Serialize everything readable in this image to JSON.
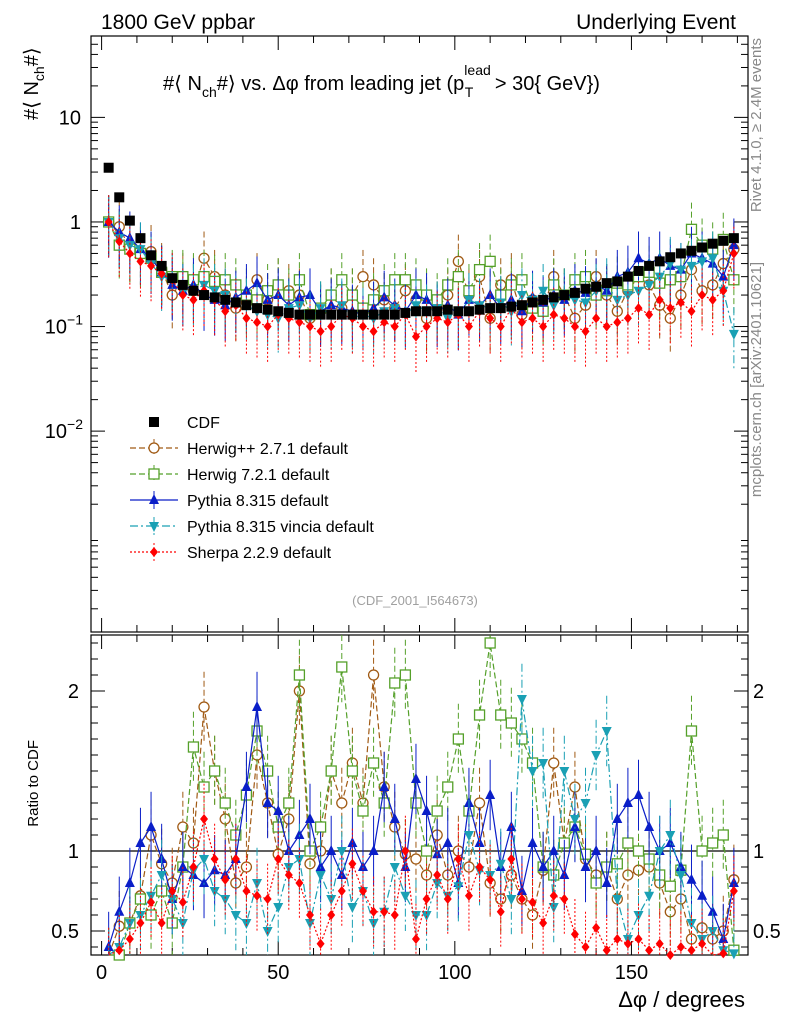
{
  "header": {
    "left": "1800 GeV ppbar",
    "right": "Underlying Event",
    "side_top": "Rivet 4.1.0, ≥ 2.4M events",
    "side_bottom": "mcplots.cern.ch [arXiv:2401.10621]",
    "analysis_id": "(CDF_2001_I564673)"
  },
  "chart_data": [
    {
      "type": "scatter",
      "panel": "main",
      "title": "#⟨ N_ch#⟩ vs. Δφ from leading jet  (p_T^lead > 30{ GeV})",
      "title_parts": {
        "a": "#⟨ N",
        "a_sub": "ch",
        "b": "#⟩ vs. Δφ from leading jet  (p",
        "b_sup": "lead",
        "b_sub": "T",
        "c": " > 30{ GeV})"
      },
      "ylabel_parts": {
        "a": "#⟨ N",
        "sub": "ch",
        "b": "#⟩"
      },
      "xlabel": "Δφ / degrees",
      "xlim": [
        -3,
        183
      ],
      "ylim": [
        0.00012,
        60
      ],
      "yscale": "log",
      "y_ticks": [
        {
          "value": 10,
          "label": "10"
        },
        {
          "value": 1,
          "label": "1"
        },
        {
          "value": 0.1,
          "label": "10",
          "sup": "−1"
        },
        {
          "value": 0.01,
          "label": "10",
          "sup": "−2"
        }
      ],
      "x": [
        2,
        5,
        8,
        11,
        14,
        17,
        20,
        23,
        26,
        29,
        32,
        35,
        38,
        41,
        44,
        47,
        50,
        53,
        56,
        59,
        62,
        65,
        68,
        71,
        74,
        77,
        80,
        83,
        86,
        89,
        92,
        95,
        98,
        101,
        104,
        107,
        110,
        113,
        116,
        119,
        122,
        125,
        128,
        131,
        134,
        137,
        140,
        143,
        146,
        149,
        152,
        155,
        158,
        161,
        164,
        167,
        170,
        173,
        176,
        179
      ],
      "series": [
        {
          "name": "CDF",
          "color": "#000000",
          "marker": "square-filled",
          "line": "none",
          "values": [
            3.3,
            1.72,
            1.03,
            0.7,
            0.48,
            0.38,
            0.29,
            0.25,
            0.22,
            0.2,
            0.19,
            0.18,
            0.17,
            0.16,
            0.15,
            0.145,
            0.14,
            0.135,
            0.13,
            0.13,
            0.13,
            0.13,
            0.13,
            0.13,
            0.13,
            0.13,
            0.13,
            0.13,
            0.135,
            0.14,
            0.14,
            0.14,
            0.145,
            0.14,
            0.14,
            0.145,
            0.15,
            0.15,
            0.155,
            0.16,
            0.17,
            0.18,
            0.19,
            0.2,
            0.21,
            0.23,
            0.24,
            0.26,
            0.27,
            0.3,
            0.34,
            0.38,
            0.42,
            0.46,
            0.5,
            0.53,
            0.57,
            0.62,
            0.66,
            0.7
          ]
        },
        {
          "name": "Herwig++ 2.7.1 default",
          "color": "#a05a14",
          "marker": "circle-open",
          "line": "dashed",
          "values": [
            1.0,
            0.9,
            0.55,
            0.5,
            0.52,
            0.35,
            0.2,
            0.28,
            0.22,
            0.45,
            0.3,
            0.2,
            0.15,
            0.17,
            0.28,
            0.18,
            0.25,
            0.22,
            0.2,
            0.12,
            0.14,
            0.2,
            0.15,
            0.2,
            0.3,
            0.25,
            0.18,
            0.15,
            0.22,
            0.18,
            0.12,
            0.15,
            0.2,
            0.42,
            0.2,
            0.3,
            0.12,
            0.25,
            0.28,
            0.13,
            0.18,
            0.15,
            0.3,
            0.2,
            0.12,
            0.16,
            0.3,
            0.2,
            0.14,
            0.22,
            0.3,
            0.25,
            0.16,
            0.12,
            0.2,
            0.35,
            0.22,
            0.25,
            0.4,
            0.55
          ]
        },
        {
          "name": "Herwig 7.2.1 default",
          "color": "#55a02a",
          "marker": "square-open",
          "line": "dashed",
          "values": [
            1.0,
            0.6,
            0.55,
            0.5,
            0.45,
            0.33,
            0.3,
            0.3,
            0.28,
            0.3,
            0.27,
            0.28,
            0.25,
            0.2,
            0.18,
            0.22,
            0.25,
            0.2,
            0.28,
            0.13,
            0.15,
            0.2,
            0.28,
            0.2,
            0.15,
            0.18,
            0.22,
            0.28,
            0.28,
            0.25,
            0.2,
            0.18,
            0.25,
            0.3,
            0.22,
            0.35,
            0.42,
            0.2,
            0.25,
            0.28,
            0.15,
            0.14,
            0.25,
            0.2,
            0.28,
            0.3,
            0.2,
            0.22,
            0.26,
            0.25,
            0.3,
            0.33,
            0.26,
            0.28,
            0.3,
            0.85,
            0.6,
            0.55,
            0.68,
            0.28
          ]
        },
        {
          "name": "Pythia 8.315 default",
          "color": "#0a1ec8",
          "marker": "triangle-up",
          "line": "solid",
          "values": [
            1.0,
            0.8,
            0.7,
            0.55,
            0.45,
            0.33,
            0.25,
            0.22,
            0.25,
            0.2,
            0.18,
            0.16,
            0.19,
            0.22,
            0.26,
            0.18,
            0.2,
            0.16,
            0.19,
            0.2,
            0.14,
            0.16,
            0.15,
            0.14,
            0.13,
            0.15,
            0.19,
            0.16,
            0.14,
            0.2,
            0.18,
            0.14,
            0.16,
            0.13,
            0.18,
            0.16,
            0.2,
            0.15,
            0.18,
            0.14,
            0.19,
            0.17,
            0.2,
            0.18,
            0.22,
            0.21,
            0.25,
            0.22,
            0.3,
            0.33,
            0.45,
            0.4,
            0.45,
            0.38,
            0.35,
            0.5,
            0.45,
            0.4,
            0.3,
            0.6
          ]
        },
        {
          "name": "Pythia 8.315 vincia default",
          "color": "#1aa0b4",
          "marker": "triangle-down",
          "line": "dashdot",
          "values": [
            1.0,
            0.7,
            0.6,
            0.55,
            0.4,
            0.3,
            0.28,
            0.22,
            0.22,
            0.25,
            0.22,
            0.2,
            0.17,
            0.16,
            0.14,
            0.13,
            0.12,
            0.15,
            0.16,
            0.12,
            0.15,
            0.13,
            0.16,
            0.12,
            0.13,
            0.12,
            0.14,
            0.15,
            0.13,
            0.16,
            0.14,
            0.15,
            0.12,
            0.13,
            0.18,
            0.16,
            0.15,
            0.17,
            0.14,
            0.2,
            0.18,
            0.22,
            0.16,
            0.2,
            0.18,
            0.17,
            0.22,
            0.25,
            0.18,
            0.2,
            0.22,
            0.25,
            0.3,
            0.4,
            0.35,
            0.38,
            0.42,
            0.45,
            0.22,
            0.085
          ]
        },
        {
          "name": "Sherpa 2.2.9 default",
          "color": "#ff0000",
          "marker": "diamond-filled",
          "line": "dotted",
          "values": [
            1.0,
            0.65,
            0.5,
            0.42,
            0.38,
            0.32,
            0.28,
            0.2,
            0.18,
            0.22,
            0.18,
            0.14,
            0.16,
            0.12,
            0.11,
            0.1,
            0.13,
            0.12,
            0.11,
            0.1,
            0.09,
            0.1,
            0.13,
            0.12,
            0.1,
            0.09,
            0.11,
            0.1,
            0.13,
            0.08,
            0.1,
            0.12,
            0.11,
            0.13,
            0.1,
            0.14,
            0.12,
            0.1,
            0.15,
            0.11,
            0.12,
            0.1,
            0.13,
            0.12,
            0.1,
            0.09,
            0.12,
            0.1,
            0.11,
            0.12,
            0.15,
            0.13,
            0.18,
            0.15,
            0.17,
            0.14,
            0.2,
            0.18,
            0.22,
            0.5
          ]
        }
      ],
      "legend": {
        "placement": "lower-left"
      }
    },
    {
      "type": "scatter",
      "panel": "ratio",
      "ylabel": "Ratio to CDF",
      "ylim": [
        0.35,
        2.35
      ],
      "reference_line": 1,
      "y_ticks": [
        {
          "value": 0.5,
          "label": "0.5"
        },
        {
          "value": 1,
          "label": "1"
        },
        {
          "value": 2,
          "label": "2"
        }
      ],
      "x_ticks": [
        {
          "value": 0,
          "label": "0"
        },
        {
          "value": 50,
          "label": "50"
        },
        {
          "value": 100,
          "label": "100"
        },
        {
          "value": 150,
          "label": "150"
        }
      ],
      "series": [
        {
          "name": "Herwig++ 2.7.1 default",
          "color": "#a05a14",
          "marker": "circle-open",
          "line": "dashed",
          "values": [
            0.3,
            0.53,
            0.55,
            0.72,
            1.1,
            0.92,
            0.8,
            1.15,
            1.05,
            1.9,
            1.5,
            1.2,
            0.8,
            0.9,
            1.6,
            1.3,
            0.98,
            1.2,
            2.0,
            0.92,
            1.0,
            1.5,
            1.3,
            1.55,
            1.3,
            2.1,
            1.4,
            1.15,
            0.98,
            0.95,
            0.85,
            1.1,
            0.85,
            1.0,
            0.9,
            1.3,
            0.8,
            0.7,
            0.85,
            0.7,
            0.6,
            0.88,
            1.55,
            1.05,
            1.4,
            0.95,
            0.85,
            0.9,
            0.7,
            0.85,
            0.88,
            0.9,
            0.8,
            0.62,
            0.7,
            0.45,
            0.52,
            0.45,
            0.5,
            0.82
          ]
        },
        {
          "name": "Herwig 7.2.1 default",
          "color": "#55a02a",
          "marker": "square-open",
          "line": "dashed",
          "values": [
            0.3,
            0.35,
            0.55,
            0.7,
            0.6,
            0.75,
            0.55,
            0.9,
            1.65,
            1.4,
            1.5,
            1.3,
            1.1,
            1.35,
            1.75,
            1.5,
            1.15,
            1.3,
            2.1,
            1.0,
            1.15,
            1.5,
            2.15,
            1.5,
            1.25,
            1.55,
            1.3,
            2.05,
            2.1,
            1.3,
            1.0,
            1.25,
            1.4,
            1.7,
            1.25,
            1.85,
            2.3,
            1.85,
            1.8,
            1.7,
            1.55,
            0.9,
            0.85,
            1.05,
            1.15,
            0.98,
            0.8,
            0.9,
            0.92,
            1.05,
            1.0,
            0.95,
            0.85,
            0.78,
            0.88,
            1.75,
            1.0,
            1.05,
            1.1,
            0.38
          ]
        },
        {
          "name": "Pythia 8.315 default",
          "color": "#0a1ec8",
          "marker": "triangle-up",
          "line": "solid",
          "values": [
            0.4,
            0.62,
            0.8,
            1.05,
            1.15,
            0.95,
            0.7,
            0.9,
            0.85,
            0.8,
            0.88,
            0.85,
            0.95,
            1.4,
            1.9,
            1.3,
            1.25,
            1.0,
            1.1,
            1.2,
            0.9,
            1.0,
            0.85,
            1.05,
            0.9,
            1.0,
            1.4,
            1.2,
            0.9,
            1.45,
            1.25,
            0.98,
            1.05,
            0.8,
            1.3,
            1.05,
            1.35,
            0.9,
            1.15,
            0.75,
            1.05,
            0.9,
            1.0,
            0.85,
            1.15,
            0.9,
            1.0,
            0.8,
            1.2,
            1.3,
            1.35,
            1.15,
            1.0,
            1.05,
            0.9,
            0.82,
            0.72,
            0.62,
            0.45,
            0.8
          ]
        },
        {
          "name": "Pythia 8.315 vincia default",
          "color": "#1aa0b4",
          "marker": "triangle-down",
          "line": "dashdot",
          "values": [
            0.3,
            0.4,
            0.55,
            0.6,
            0.72,
            0.85,
            0.7,
            0.55,
            0.88,
            0.95,
            0.75,
            0.7,
            0.6,
            0.55,
            0.8,
            0.5,
            0.65,
            0.9,
            0.95,
            0.55,
            0.85,
            0.7,
            1.0,
            0.65,
            0.75,
            0.55,
            0.62,
            0.9,
            0.72,
            0.6,
            0.6,
            0.8,
            0.72,
            0.78,
            1.1,
            0.88,
            0.85,
            0.92,
            0.7,
            1.95,
            1.5,
            1.55,
            0.65,
            1.5,
            1.2,
            1.3,
            1.6,
            1.75,
            0.7,
            0.45,
            0.6,
            0.72,
            1.0,
            1.1,
            0.85,
            0.55,
            0.45,
            0.5,
            0.38,
            0.36
          ]
        },
        {
          "name": "Sherpa 2.2.9 default",
          "color": "#ff0000",
          "marker": "diamond-filled",
          "line": "dotted",
          "values": [
            0.3,
            0.38,
            0.45,
            0.55,
            0.68,
            0.55,
            0.75,
            0.68,
            0.9,
            1.2,
            0.95,
            0.82,
            0.95,
            0.75,
            0.72,
            0.7,
            0.95,
            0.85,
            0.8,
            0.6,
            0.42,
            0.6,
            0.75,
            0.92,
            0.75,
            0.62,
            0.62,
            0.6,
            1.0,
            0.45,
            0.7,
            0.85,
            0.7,
            0.95,
            0.72,
            0.9,
            0.82,
            0.62,
            0.95,
            0.7,
            0.68,
            0.55,
            0.72,
            0.7,
            0.48,
            0.4,
            0.52,
            0.38,
            0.45,
            0.42,
            0.45,
            0.38,
            0.42,
            0.35,
            0.4,
            0.38,
            0.42,
            0.3,
            0.36,
            0.75
          ]
        }
      ]
    }
  ]
}
